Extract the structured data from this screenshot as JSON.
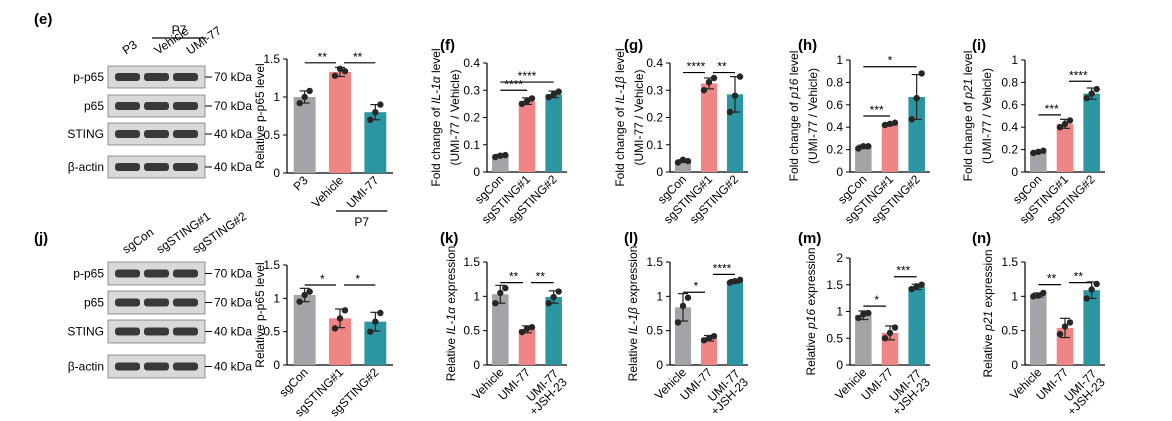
{
  "colors": {
    "grey": "#a3a4a8",
    "pink": "#ef8585",
    "teal": "#2b95a1",
    "dot": "#262626",
    "blot_bg": "#d9d9d9",
    "band": "#1c1c1c"
  },
  "blots": [
    {
      "panel": "(e)",
      "top_group": "P7",
      "lanes": [
        "P3",
        "Vehicle",
        "UMI-77"
      ],
      "rows": [
        {
          "label": "p-p65",
          "marker": "70 kDa"
        },
        {
          "label": "p65",
          "marker": "70 kDa"
        },
        {
          "label": "STING",
          "marker": "40 kDa"
        },
        {
          "label": "β-actin",
          "marker": "40 kDa"
        }
      ]
    },
    {
      "panel": "(j)",
      "top_group": "",
      "lanes": [
        "sgCon",
        "sgSTING#1",
        "sgSTING#2"
      ],
      "rows": [
        {
          "label": "p-p65",
          "marker": "70 kDa"
        },
        {
          "label": "p65",
          "marker": "70 kDa"
        },
        {
          "label": "STING",
          "marker": "40 kDa"
        },
        {
          "label": "β-actin",
          "marker": "40 kDa"
        }
      ]
    }
  ],
  "chart_data": [
    {
      "panel": "",
      "type": "bar",
      "categories": [
        "P3",
        "Vehicle",
        "UMI-77"
      ],
      "subgroup": {
        "label": "P7",
        "from": 1,
        "to": 2
      },
      "values": [
        1.0,
        1.33,
        0.8
      ],
      "points": [
        [
          0.92,
          1.0,
          1.08
        ],
        [
          1.28,
          1.37,
          1.34
        ],
        [
          0.7,
          0.8,
          0.9
        ]
      ],
      "errors": [
        0.08,
        0.06,
        0.1
      ],
      "colors": [
        "grey",
        "pink",
        "teal"
      ],
      "ylim": [
        0,
        1.5
      ],
      "yticks": [
        0,
        0.5,
        1,
        1.5
      ],
      "ylabel": [
        {
          "t": "Relative p-p65 level"
        }
      ],
      "sig": [
        {
          "a": 0,
          "b": 1,
          "y": 1.45,
          "label": "**"
        },
        {
          "a": 1,
          "b": 2,
          "y": 1.45,
          "label": "**"
        }
      ]
    },
    {
      "panel": "(f)",
      "type": "bar",
      "categories": [
        "sgCon",
        "sgSTING#1",
        "sgSTING#2"
      ],
      "values": [
        0.06,
        0.26,
        0.285
      ],
      "points": [
        [
          0.055,
          0.06,
          0.062
        ],
        [
          0.25,
          0.26,
          0.27
        ],
        [
          0.275,
          0.285,
          0.295
        ]
      ],
      "errors": [
        0.004,
        0.012,
        0.012
      ],
      "colors": [
        "grey",
        "pink",
        "teal"
      ],
      "ylim": [
        0,
        0.4
      ],
      "yticks": [
        0,
        0.1,
        0.2,
        0.3,
        0.4
      ],
      "ylabel": [
        {
          "t": "Fold change of "
        },
        {
          "t": "IL-1α",
          "i": true
        },
        {
          "t": " level"
        }
      ],
      "ylabel2": "(UMI-77 / Vehicle)",
      "sig": [
        {
          "a": 0,
          "b": 1,
          "y": 0.3,
          "label": "****"
        },
        {
          "a": 0,
          "b": 2,
          "y": 0.33,
          "label": "****"
        }
      ]
    },
    {
      "panel": "(g)",
      "type": "bar",
      "categories": [
        "sgCon",
        "sgSTING#1",
        "sgSTING#2"
      ],
      "values": [
        0.04,
        0.325,
        0.285
      ],
      "points": [
        [
          0.035,
          0.045,
          0.04
        ],
        [
          0.3,
          0.33,
          0.345
        ],
        [
          0.22,
          0.28,
          0.35
        ]
      ],
      "errors": [
        0.005,
        0.02,
        0.065
      ],
      "colors": [
        "grey",
        "pink",
        "teal"
      ],
      "ylim": [
        0,
        0.4
      ],
      "yticks": [
        0,
        0.1,
        0.2,
        0.3,
        0.4
      ],
      "ylabel": [
        {
          "t": "Fold change of "
        },
        {
          "t": "IL-1β",
          "i": true
        },
        {
          "t": " level"
        }
      ],
      "ylabel2": "(UMI-77 / Vehicle)",
      "sig": [
        {
          "a": 0,
          "b": 1,
          "y": 0.365,
          "label": "****"
        },
        {
          "a": 1,
          "b": 2,
          "y": 0.365,
          "label": "**"
        }
      ]
    },
    {
      "panel": "(h)",
      "type": "bar",
      "categories": [
        "sgCon",
        "sgSTING#1",
        "sgSTING#2"
      ],
      "values": [
        0.225,
        0.43,
        0.67
      ],
      "points": [
        [
          0.21,
          0.23,
          0.23
        ],
        [
          0.42,
          0.43,
          0.44
        ],
        [
          0.47,
          0.66,
          0.88
        ]
      ],
      "errors": [
        0.015,
        0.01,
        0.2
      ],
      "colors": [
        "grey",
        "pink",
        "teal"
      ],
      "ylim": [
        0,
        1
      ],
      "yticks": [
        0,
        0.2,
        0.4,
        0.6,
        0.8,
        1
      ],
      "ylabel": [
        {
          "t": "Fold change of "
        },
        {
          "t": "p16",
          "i": true
        },
        {
          "t": " level"
        }
      ],
      "ylabel2": "(UMI-77 / Vehicle)",
      "sig": [
        {
          "a": 0,
          "b": 1,
          "y": 0.5,
          "label": "***"
        },
        {
          "a": 0,
          "b": 2,
          "y": 0.94,
          "label": "*"
        }
      ]
    },
    {
      "panel": "(i)",
      "type": "bar",
      "categories": [
        "sgCon",
        "sgSTING#1",
        "sgSTING#2"
      ],
      "values": [
        0.18,
        0.43,
        0.7
      ],
      "points": [
        [
          0.17,
          0.18,
          0.19
        ],
        [
          0.4,
          0.43,
          0.46
        ],
        [
          0.66,
          0.7,
          0.74
        ]
      ],
      "errors": [
        0.01,
        0.04,
        0.05
      ],
      "colors": [
        "grey",
        "pink",
        "teal"
      ],
      "ylim": [
        0,
        1
      ],
      "yticks": [
        0,
        0.2,
        0.4,
        0.6,
        0.8,
        1
      ],
      "ylabel": [
        {
          "t": "Fold change of "
        },
        {
          "t": "p21",
          "i": true
        },
        {
          "t": " level"
        }
      ],
      "ylabel2": "(UMI-77 / Vehicle)",
      "sig": [
        {
          "a": 0,
          "b": 1,
          "y": 0.51,
          "label": "***"
        },
        {
          "a": 1,
          "b": 2,
          "y": 0.81,
          "label": "****"
        }
      ]
    },
    {
      "panel": "",
      "type": "bar",
      "categories": [
        "sgCon",
        "sgSTING#1",
        "sgSTING#2"
      ],
      "values": [
        1.05,
        0.7,
        0.65
      ],
      "points": [
        [
          0.95,
          1.05,
          1.1
        ],
        [
          0.55,
          0.7,
          0.82
        ],
        [
          0.5,
          0.65,
          0.78
        ]
      ],
      "errors": [
        0.1,
        0.14,
        0.14
      ],
      "colors": [
        "grey",
        "pink",
        "teal"
      ],
      "ylim": [
        0,
        1.5
      ],
      "yticks": [
        0,
        0.5,
        1,
        1.5
      ],
      "ylabel": [
        {
          "t": "Relative p-p65 level"
        }
      ],
      "sig": [
        {
          "a": 0,
          "b": 1,
          "y": 1.2,
          "label": "*"
        },
        {
          "a": 1,
          "b": 2,
          "y": 1.2,
          "label": "*"
        }
      ]
    },
    {
      "panel": "(k)",
      "type": "bar",
      "categories": [
        "Vehicle",
        "UMI-77",
        "UMI-77\n+JSH-23"
      ],
      "values": [
        1.03,
        0.52,
        0.99
      ],
      "points": [
        [
          0.9,
          1.05,
          1.12
        ],
        [
          0.48,
          0.53,
          0.55
        ],
        [
          0.9,
          0.99,
          1.07
        ]
      ],
      "errors": [
        0.13,
        0.05,
        0.09
      ],
      "colors": [
        "grey",
        "pink",
        "teal"
      ],
      "ylim": [
        0,
        1.5
      ],
      "yticks": [
        0,
        0.5,
        1,
        1.5
      ],
      "ylabel": [
        {
          "t": "Relative "
        },
        {
          "t": "IL-1α",
          "i": true
        },
        {
          "t": " expression"
        }
      ],
      "sig": [
        {
          "a": 0,
          "b": 1,
          "y": 1.2,
          "label": "**"
        },
        {
          "a": 1,
          "b": 2,
          "y": 1.2,
          "label": "**"
        }
      ]
    },
    {
      "panel": "(l)",
      "type": "bar",
      "categories": [
        "Vehicle",
        "UMI-77",
        "UMI-77\n+JSH-23"
      ],
      "values": [
        0.84,
        0.39,
        1.22
      ],
      "points": [
        [
          0.62,
          0.86,
          0.98
        ],
        [
          0.36,
          0.39,
          0.42
        ],
        [
          1.2,
          1.22,
          1.24
        ]
      ],
      "errors": [
        0.2,
        0.04,
        0.025
      ],
      "colors": [
        "grey",
        "pink",
        "teal"
      ],
      "ylim": [
        0,
        1.5
      ],
      "yticks": [
        0,
        0.5,
        1,
        1.5
      ],
      "ylabel": [
        {
          "t": "Relative "
        },
        {
          "t": "IL-1β",
          "i": true
        },
        {
          "t": " expression"
        }
      ],
      "sig": [
        {
          "a": 0,
          "b": 1,
          "y": 1.06,
          "label": "*"
        },
        {
          "a": 1,
          "b": 2,
          "y": 1.32,
          "label": "****"
        }
      ]
    },
    {
      "panel": "(m)",
      "type": "bar",
      "categories": [
        "Vehicle",
        "UMI-77",
        "UMI-77\n+JSH-23"
      ],
      "values": [
        0.93,
        0.6,
        1.46
      ],
      "points": [
        [
          0.88,
          0.95,
          0.97
        ],
        [
          0.5,
          0.6,
          0.7
        ],
        [
          1.42,
          1.47,
          1.5
        ]
      ],
      "errors": [
        0.08,
        0.13,
        0.05
      ],
      "colors": [
        "grey",
        "pink",
        "teal"
      ],
      "ylim": [
        0,
        2
      ],
      "yticks": [
        0,
        0.5,
        1,
        1.5,
        2
      ],
      "ylabel": [
        {
          "t": "Relative "
        },
        {
          "t": "p16",
          "i": true
        },
        {
          "t": " expression"
        }
      ],
      "sig": [
        {
          "a": 0,
          "b": 1,
          "y": 1.1,
          "label": "*"
        },
        {
          "a": 1,
          "b": 2,
          "y": 1.65,
          "label": "***"
        }
      ]
    },
    {
      "panel": "(n)",
      "type": "bar",
      "categories": [
        "Vehicle",
        "UMI-77",
        "UMI-77\n+JSH-23"
      ],
      "values": [
        1.02,
        0.54,
        1.09
      ],
      "points": [
        [
          1.0,
          1.01,
          1.05
        ],
        [
          0.45,
          0.56,
          0.62
        ],
        [
          0.97,
          1.1,
          1.18
        ]
      ],
      "errors": [
        0.03,
        0.14,
        0.12
      ],
      "colors": [
        "grey",
        "pink",
        "teal"
      ],
      "ylim": [
        0,
        1.5
      ],
      "yticks": [
        0,
        0.5,
        1,
        1.5
      ],
      "ylabel": [
        {
          "t": "Relative "
        },
        {
          "t": "p21",
          "i": true
        },
        {
          "t": " expression"
        }
      ],
      "sig": [
        {
          "a": 0,
          "b": 1,
          "y": 1.17,
          "label": "**"
        },
        {
          "a": 1,
          "b": 2,
          "y": 1.2,
          "label": "**"
        }
      ]
    }
  ]
}
